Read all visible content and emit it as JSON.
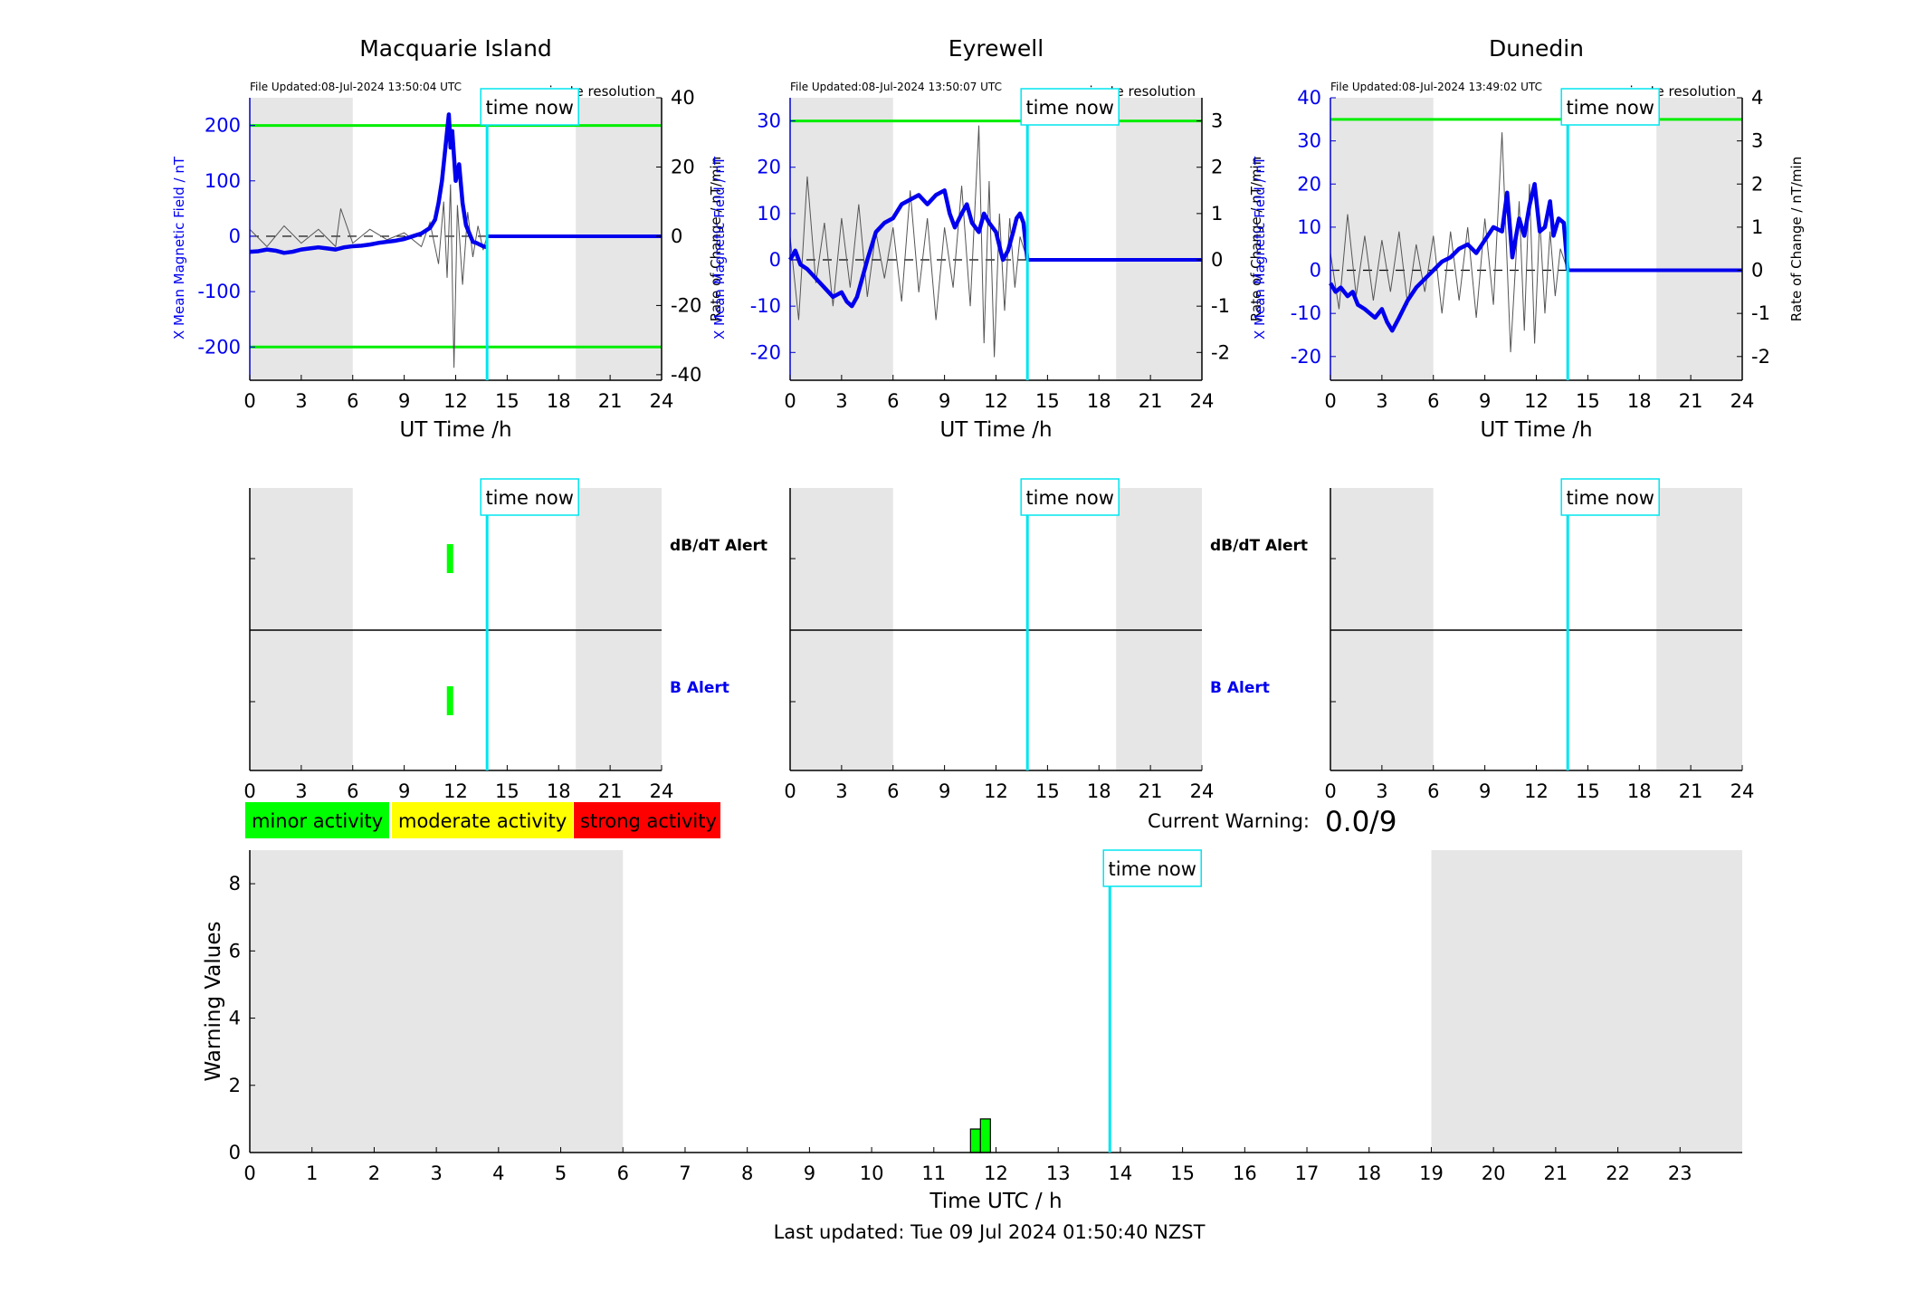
{
  "footer": {
    "last_updated": "Last updated: Tue 09 Jul 2024 01:50:40 NZST"
  },
  "time_now_label": "time now",
  "colors": {
    "shade": "#e6e6e6",
    "limit": "#00ee00",
    "b_trace": "#0000ee",
    "dbdt_trace": "#555555",
    "now_line": "#00e5ee",
    "minor": "#00ff00",
    "moderate": "#ffff00",
    "strong": "#ff0000"
  },
  "legend": {
    "minor": "minor activity",
    "moderate": "moderate activity",
    "strong": "strong activity"
  },
  "current_warning": {
    "label": "Current Warning:",
    "value": "0.0/9"
  },
  "alert_labels": {
    "dbdt": "dB/dT Alert",
    "b": "B Alert"
  },
  "chart_data": [
    {
      "type": "line",
      "title": "Macquarie Island",
      "file_updated": "File Updated:08-Jul-2024 13:50:04 UTC",
      "resolution": "minute resolution",
      "xlabel": "UT Time /h",
      "ylabel": "X Mean Magnetic Field / nT",
      "ylabel2": "Rate of Change / nT/min",
      "xlim": [
        0,
        24
      ],
      "ylim": [
        -260,
        250
      ],
      "ylim2": [
        -41.6,
        40
      ],
      "xticks": [
        0,
        3,
        6,
        9,
        12,
        15,
        18,
        21,
        24
      ],
      "yticks": [
        -200,
        -100,
        0,
        100,
        200
      ],
      "yticks2": [
        -40,
        -20,
        0,
        20,
        40
      ],
      "limits": [
        200,
        -200
      ],
      "night_shade": [
        [
          0,
          6
        ],
        [
          19,
          24
        ]
      ],
      "time_now": 13.83,
      "series": [
        {
          "name": "X Mean Magnetic Field",
          "x": [
            0,
            0.5,
            1,
            1.5,
            2,
            2.5,
            3,
            3.5,
            4,
            4.5,
            5,
            5.5,
            6,
            6.5,
            7,
            7.5,
            8,
            8.5,
            9,
            9.5,
            10,
            10.5,
            10.8,
            11,
            11.2,
            11.4,
            11.6,
            11.7,
            11.8,
            12,
            12.2,
            12.4,
            12.6,
            12.8,
            13,
            13.2,
            13.4,
            13.6,
            13.83
          ],
          "y": [
            -28,
            -27,
            -24,
            -26,
            -30,
            -28,
            -24,
            -22,
            -20,
            -22,
            -24,
            -20,
            -18,
            -17,
            -15,
            -12,
            -10,
            -8,
            -5,
            0,
            5,
            15,
            30,
            60,
            100,
            160,
            220,
            160,
            190,
            100,
            130,
            60,
            20,
            5,
            -10,
            -12,
            -15,
            -18,
            -20
          ]
        },
        {
          "name": "X Mean Magnetic Field (after now)",
          "x": [
            13.83,
            24
          ],
          "y": [
            0,
            0
          ]
        },
        {
          "name": "Rate of Change",
          "x": [
            0,
            1,
            2,
            3,
            4,
            5,
            5.3,
            6,
            7,
            8,
            9,
            10,
            10.5,
            11,
            11.3,
            11.5,
            11.7,
            11.9,
            12.1,
            12.4,
            12.7,
            13,
            13.3,
            13.6,
            13.83
          ],
          "y": [
            2,
            -3,
            3,
            -2,
            2,
            -3,
            8,
            -2,
            2,
            -1,
            1,
            -3,
            4,
            -8,
            10,
            -12,
            15,
            -38,
            9,
            -14,
            7,
            -6,
            3,
            -4,
            0
          ]
        }
      ]
    },
    {
      "type": "line",
      "title": "Eyrewell",
      "file_updated": "File Updated:08-Jul-2024 13:50:07 UTC",
      "resolution": "minute resolution",
      "xlabel": "UT Time /h",
      "ylabel": "X Mean Magnetic Field / nT",
      "ylabel2": "Rate of Change / nT/min",
      "xlim": [
        0,
        24
      ],
      "ylim": [
        -26,
        35
      ],
      "ylim2": [
        -2.6,
        3.5
      ],
      "xticks": [
        0,
        3,
        6,
        9,
        12,
        15,
        18,
        21,
        24
      ],
      "yticks": [
        -20,
        -10,
        0,
        10,
        20,
        30
      ],
      "yticks2": [
        -2,
        -1,
        0,
        1,
        2,
        3
      ],
      "limits": [
        30
      ],
      "night_shade": [
        [
          0,
          6
        ],
        [
          19,
          24
        ]
      ],
      "time_now": 13.83,
      "series": [
        {
          "name": "X Mean Magnetic Field",
          "x": [
            0,
            0.3,
            0.6,
            1,
            1.5,
            2,
            2.5,
            3,
            3.3,
            3.6,
            3.9,
            4.2,
            4.5,
            5,
            5.5,
            6,
            6.5,
            7,
            7.5,
            8,
            8.5,
            9,
            9.3,
            9.6,
            10,
            10.3,
            10.6,
            11,
            11.3,
            11.6,
            12,
            12.4,
            12.7,
            13,
            13.2,
            13.4,
            13.6,
            13.83
          ],
          "y": [
            0,
            2,
            -1,
            -2,
            -4,
            -6,
            -8,
            -7,
            -9,
            -10,
            -8,
            -4,
            0,
            6,
            8,
            9,
            12,
            13,
            14,
            12,
            14,
            15,
            10,
            7,
            10,
            12,
            8,
            6,
            10,
            8,
            6,
            0,
            2,
            6,
            9,
            10,
            8,
            0
          ]
        },
        {
          "name": "X Mean Magnetic Field (after now)",
          "x": [
            13.83,
            24
          ],
          "y": [
            0,
            0
          ]
        },
        {
          "name": "Rate of Change",
          "x": [
            0,
            0.5,
            1,
            1.5,
            2,
            2.5,
            3,
            3.5,
            4,
            4.5,
            5,
            5.5,
            6,
            6.5,
            7,
            7.5,
            8,
            8.5,
            9,
            9.5,
            10,
            10.5,
            11,
            11.3,
            11.6,
            11.9,
            12.2,
            12.5,
            12.8,
            13.1,
            13.4,
            13.83
          ],
          "y": [
            0.5,
            -1.3,
            1.8,
            -0.5,
            0.8,
            -1.0,
            0.9,
            -0.6,
            1.2,
            -0.8,
            0.6,
            -0.4,
            0.7,
            -0.9,
            1.5,
            -0.7,
            0.9,
            -1.3,
            0.7,
            -0.6,
            1.6,
            -1.0,
            2.9,
            -1.8,
            1.7,
            -2.1,
            1.0,
            -1.1,
            0.9,
            -0.6,
            0.5,
            0
          ]
        }
      ]
    },
    {
      "type": "line",
      "title": "Dunedin",
      "file_updated": "File Updated:08-Jul-2024 13:49:02 UTC",
      "resolution": "minute resolution",
      "xlabel": "UT Time /h",
      "ylabel": "X Mean Magnetic Field / nT",
      "ylabel2": "Rate of Change / nT/min",
      "xlim": [
        0,
        24
      ],
      "ylim": [
        -25.5,
        40
      ],
      "ylim2": [
        -2.55,
        4
      ],
      "xticks": [
        0,
        3,
        6,
        9,
        12,
        15,
        18,
        21,
        24
      ],
      "yticks": [
        -20,
        -10,
        0,
        10,
        20,
        30,
        40
      ],
      "yticks2": [
        -2,
        -1,
        0,
        1,
        2,
        3,
        4
      ],
      "limits": [
        35
      ],
      "night_shade": [
        [
          0,
          6
        ],
        [
          19,
          24
        ]
      ],
      "time_now": 13.83,
      "series": [
        {
          "name": "X Mean Magnetic Field",
          "x": [
            0,
            0.3,
            0.6,
            1,
            1.3,
            1.6,
            2,
            2.3,
            2.6,
            3,
            3.3,
            3.6,
            4,
            4.5,
            5,
            5.5,
            6,
            6.5,
            7,
            7.5,
            8,
            8.5,
            9,
            9.5,
            10,
            10.3,
            10.6,
            11,
            11.3,
            11.6,
            11.9,
            12.2,
            12.5,
            12.8,
            13,
            13.3,
            13.6,
            13.83
          ],
          "y": [
            -3,
            -5,
            -4,
            -6,
            -5,
            -8,
            -9,
            -10,
            -11,
            -9,
            -12,
            -14,
            -11,
            -7,
            -4,
            -2,
            0,
            2,
            3,
            5,
            6,
            4,
            7,
            10,
            9,
            18,
            3,
            12,
            8,
            15,
            20,
            9,
            10,
            16,
            8,
            12,
            11,
            0
          ]
        },
        {
          "name": "X Mean Magnetic Field (after now)",
          "x": [
            13.83,
            24
          ],
          "y": [
            0,
            0
          ]
        },
        {
          "name": "Rate of Change",
          "x": [
            0,
            0.5,
            1,
            1.5,
            2,
            2.5,
            3,
            3.5,
            4,
            4.5,
            5,
            5.5,
            6,
            6.5,
            7,
            7.5,
            8,
            8.5,
            9,
            9.5,
            10,
            10.5,
            11,
            11.3,
            11.6,
            11.9,
            12.2,
            12.5,
            12.8,
            13.1,
            13.4,
            13.83
          ],
          "y": [
            0.4,
            -0.9,
            1.3,
            -0.6,
            0.8,
            -0.7,
            0.7,
            -0.5,
            0.9,
            -0.8,
            0.6,
            -0.5,
            0.8,
            -1.0,
            0.9,
            -0.7,
            1.0,
            -1.1,
            1.2,
            -0.8,
            3.2,
            -1.9,
            1.6,
            -1.4,
            2.0,
            -1.7,
            1.2,
            -1.0,
            0.9,
            -0.6,
            0.5,
            0
          ]
        }
      ]
    },
    {
      "type": "bar",
      "title": "",
      "xlabel": "Time UTC / h",
      "ylabel": "Warning Values",
      "xlim": [
        0,
        24
      ],
      "ylim": [
        0,
        9
      ],
      "xticks": [
        0,
        1,
        2,
        3,
        4,
        5,
        6,
        7,
        8,
        9,
        10,
        11,
        12,
        13,
        14,
        15,
        16,
        17,
        18,
        19,
        20,
        21,
        22,
        23
      ],
      "yticks": [
        0,
        2,
        4,
        6,
        8
      ],
      "night_shade": [
        [
          0,
          6
        ],
        [
          19,
          24
        ]
      ],
      "time_now": 13.83,
      "bar_width_h": 0.16,
      "bars": [
        {
          "x": 11.67,
          "value": 0.7,
          "level": "minor"
        },
        {
          "x": 11.83,
          "value": 1.0,
          "level": "minor"
        }
      ]
    }
  ],
  "alert_panels": [
    {
      "station": "Macquarie Island",
      "dbdt_alerts": [
        {
          "x": 11.67,
          "level": "minor"
        }
      ],
      "b_alerts": [
        {
          "x": 11.67,
          "level": "minor"
        }
      ]
    },
    {
      "station": "Eyrewell",
      "dbdt_alerts": [],
      "b_alerts": []
    },
    {
      "station": "Dunedin",
      "dbdt_alerts": [],
      "b_alerts": []
    }
  ]
}
